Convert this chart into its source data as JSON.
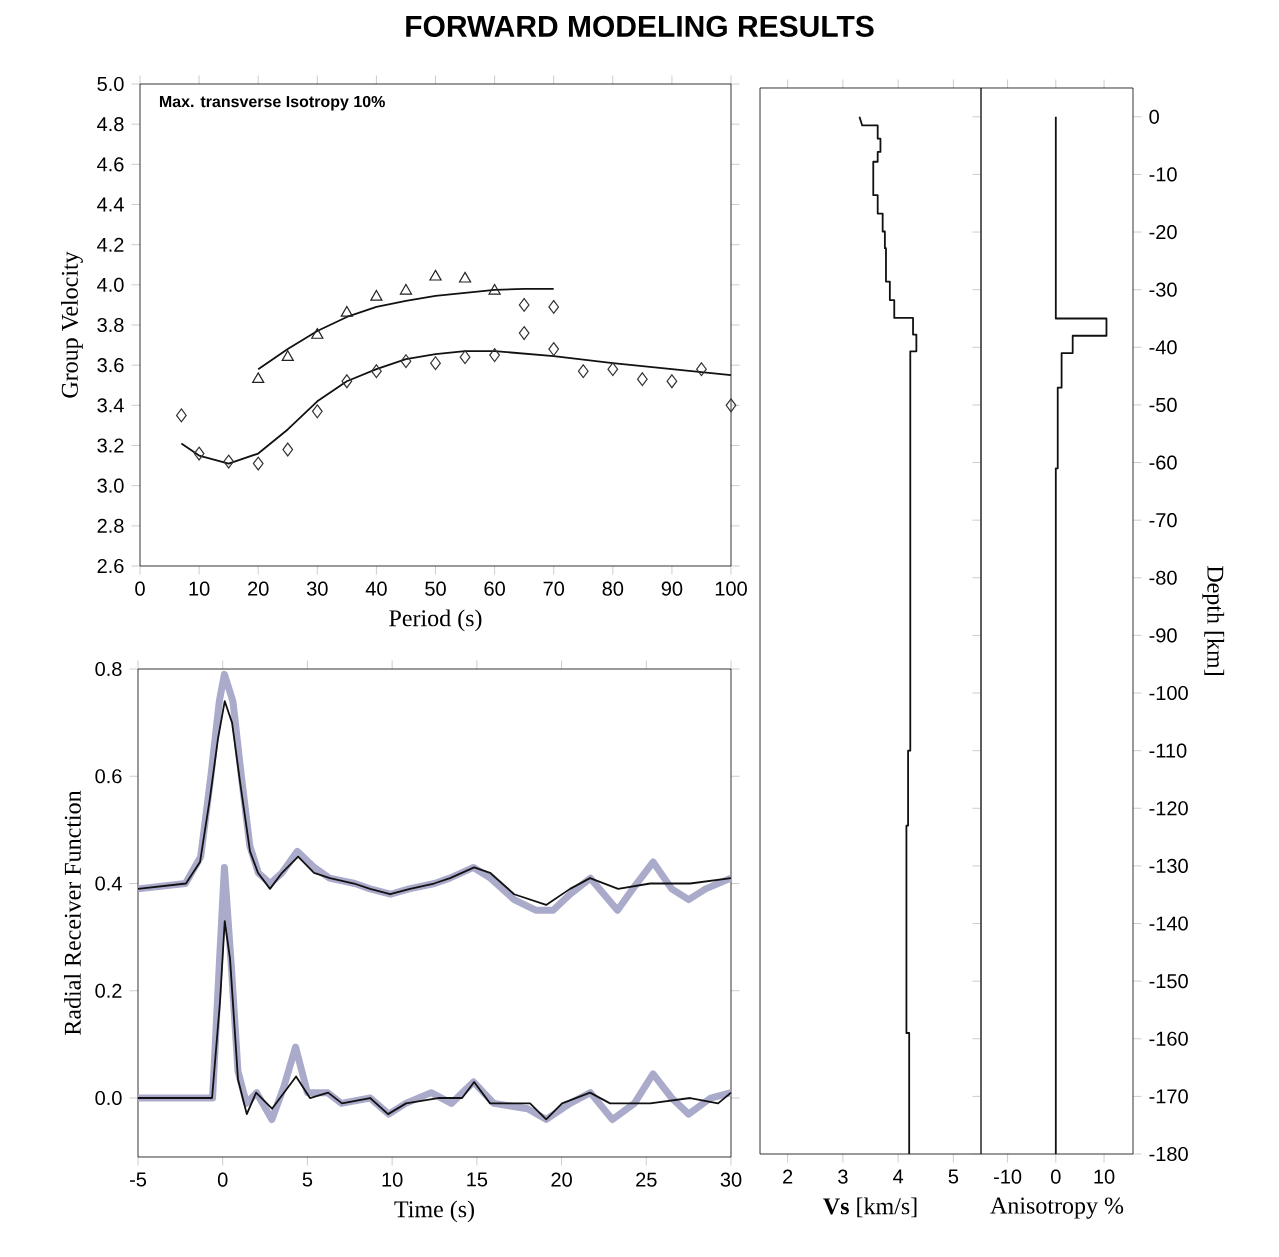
{
  "chart_data": [
    {
      "type": "scatter",
      "title": "FORWARD MODELING RESULTS",
      "xlabel": "Period (s)",
      "ylabel": "Group Velocity",
      "annotations": [
        "Max. transverse Isotropy 10%"
      ],
      "xlim": [
        0,
        100
      ],
      "ylim": [
        2.6,
        5.0
      ],
      "xticks": [
        0,
        10,
        20,
        30,
        40,
        50,
        60,
        70,
        80,
        90,
        100
      ],
      "yticks": [
        {
          "value": 2.6,
          "label": "2.6"
        },
        {
          "value": 2.8,
          "label": "2.8"
        },
        {
          "value": 3.0,
          "label": "3.0"
        },
        {
          "value": 3.2,
          "label": "3.2"
        },
        {
          "value": 3.4,
          "label": "3.4"
        },
        {
          "value": 3.6,
          "label": "3.6"
        },
        {
          "value": 3.8,
          "label": "3.8"
        },
        {
          "value": 4.0,
          "label": "4.0"
        },
        {
          "value": 4.2,
          "label": "4.2"
        },
        {
          "value": 4.4,
          "label": "4.4"
        },
        {
          "value": 4.6,
          "label": "4.6"
        },
        {
          "value": 4.8,
          "label": "4.8"
        },
        {
          "value": 5.0,
          "label": "5.0"
        }
      ],
      "series": [
        {
          "type": "scatter",
          "marker": "triangle",
          "color": "#222222",
          "x": [
            20,
            25,
            30,
            35,
            40,
            45,
            50,
            55,
            60
          ],
          "values": [
            3.53,
            3.64,
            3.75,
            3.86,
            3.94,
            3.97,
            4.04,
            4.03,
            3.97
          ]
        },
        {
          "type": "scatter",
          "marker": "diamond",
          "color": "#333333",
          "x": [
            7,
            10,
            15,
            20,
            25,
            30,
            35,
            40,
            45,
            50,
            55,
            60,
            65,
            65,
            70,
            70,
            75,
            80,
            85,
            90,
            95,
            100
          ],
          "values": [
            3.35,
            3.16,
            3.12,
            3.11,
            3.18,
            3.37,
            3.52,
            3.57,
            3.62,
            3.61,
            3.64,
            3.65,
            3.9,
            3.76,
            3.89,
            3.68,
            3.57,
            3.58,
            3.53,
            3.52,
            3.58,
            3.4
          ]
        },
        {
          "type": "line",
          "color": "#111111",
          "x": [
            20,
            25,
            30,
            35,
            40,
            45,
            50,
            55,
            60,
            65,
            70
          ],
          "values": [
            3.58,
            3.68,
            3.77,
            3.84,
            3.89,
            3.92,
            3.945,
            3.96,
            3.975,
            3.98,
            3.98
          ]
        },
        {
          "type": "line",
          "color": "#111111",
          "x": [
            7,
            10,
            15,
            20,
            25,
            30,
            35,
            40,
            45,
            50,
            55,
            60,
            70,
            80,
            90,
            100
          ],
          "values": [
            3.21,
            3.15,
            3.11,
            3.16,
            3.28,
            3.42,
            3.52,
            3.58,
            3.63,
            3.655,
            3.67,
            3.67,
            3.645,
            3.61,
            3.58,
            3.55
          ]
        }
      ]
    },
    {
      "type": "line",
      "xlabel": "Time (s)",
      "ylabel": "Radial Receiver Function",
      "xlim": [
        -5,
        30
      ],
      "ylim": [
        -0.11,
        0.8
      ],
      "xticks": [
        -5,
        0,
        5,
        10,
        15,
        20,
        25,
        30
      ],
      "yticks": [
        {
          "value": 0,
          "label": "0.0"
        },
        {
          "value": 0.2,
          "label": "0.2"
        },
        {
          "value": 0.4,
          "label": "0.4"
        },
        {
          "value": 0.6,
          "label": "0.6"
        },
        {
          "value": 0.8,
          "label": "0.8"
        }
      ],
      "series": [
        {
          "color": "#aaaacb",
          "x": [
            -5,
            -2.2,
            -1.3,
            -0.7,
            -0.2,
            0.1,
            0.6,
            1.1,
            1.6,
            2.1,
            2.8,
            3.5,
            4.4,
            5.4,
            6.3,
            7.8,
            8.7,
            9.9,
            11,
            12.5,
            13.4,
            14.8,
            15.8,
            17.2,
            18.5,
            19.5,
            20.5,
            21.7,
            23.3,
            24.2,
            25.4,
            26.5,
            27.5,
            28.5,
            30
          ],
          "values": [
            0.39,
            0.4,
            0.45,
            0.6,
            0.74,
            0.79,
            0.74,
            0.6,
            0.47,
            0.42,
            0.4,
            0.42,
            0.46,
            0.43,
            0.41,
            0.4,
            0.39,
            0.38,
            0.39,
            0.4,
            0.41,
            0.43,
            0.41,
            0.37,
            0.35,
            0.35,
            0.38,
            0.41,
            0.35,
            0.39,
            0.44,
            0.39,
            0.37,
            0.39,
            0.41
          ]
        },
        {
          "color": "#111111",
          "x": [
            -5,
            -2.17,
            -1.34,
            -0.75,
            -0.28,
            0.12,
            0.55,
            1.02,
            1.61,
            2.08,
            2.79,
            3.5,
            4.45,
            5.39,
            6.33,
            7.75,
            8.7,
            9.88,
            11.06,
            12.47,
            13.42,
            14.84,
            15.78,
            17.2,
            19.09,
            20.5,
            21.68,
            23.34,
            25.23,
            27.59,
            30
          ],
          "values": [
            0.39,
            0.4,
            0.44,
            0.56,
            0.67,
            0.74,
            0.7,
            0.59,
            0.46,
            0.42,
            0.39,
            0.42,
            0.45,
            0.42,
            0.41,
            0.4,
            0.39,
            0.38,
            0.39,
            0.4,
            0.41,
            0.43,
            0.42,
            0.38,
            0.36,
            0.39,
            0.41,
            0.39,
            0.4,
            0.4,
            0.41
          ]
        },
        {
          "color": "#aaaacb",
          "x": [
            -5,
            -0.6,
            -0.2,
            0.1,
            0.5,
            0.9,
            1.4,
            2,
            2.9,
            3.6,
            4.3,
            5,
            6.2,
            7,
            8.7,
            9.8,
            10.8,
            12.3,
            13.5,
            14.8,
            16,
            18,
            19.1,
            20.5,
            21.7,
            23,
            24.3,
            25.4,
            26.5,
            27.5,
            28.8,
            30
          ],
          "values": [
            0,
            0,
            0.25,
            0.43,
            0.25,
            0.05,
            -0.01,
            0.01,
            -0.04,
            0.02,
            0.095,
            0.01,
            0.01,
            -0.01,
            0,
            -0.03,
            -0.01,
            0.01,
            -0.01,
            0.03,
            -0.01,
            -0.02,
            -0.04,
            -0.01,
            0.01,
            -0.04,
            -0.01,
            0.045,
            0,
            -0.03,
            0,
            0.01
          ]
        },
        {
          "color": "#111111",
          "x": [
            -5,
            -0.63,
            -0.16,
            0.12,
            0.43,
            0.9,
            1.42,
            1.97,
            2.91,
            4.33,
            5.15,
            6.22,
            7.04,
            8.7,
            9.76,
            10.82,
            12.71,
            14.13,
            14.84,
            15.78,
            17.67,
            18.14,
            19.09,
            20.03,
            21.68,
            22.86,
            25.23,
            27.59,
            29.24,
            30
          ],
          "values": [
            0,
            0,
            0.18,
            0.33,
            0.26,
            0.035,
            -0.03,
            0.01,
            -0.02,
            0.04,
            0,
            0.01,
            -0.01,
            0,
            -0.03,
            -0.01,
            0,
            0,
            0.03,
            -0.01,
            -0.01,
            -0.01,
            -0.04,
            -0.01,
            0.01,
            -0.01,
            -0.01,
            0,
            -0.01,
            0.01
          ]
        }
      ]
    },
    {
      "type": "line",
      "xlabel": "**Vs** [km/s]",
      "xlim": [
        1.5,
        5.5
      ],
      "ylim": [
        -180,
        5
      ],
      "xticks": [
        2,
        3,
        4,
        5
      ],
      "tick_labels": "x",
      "series": [
        {
          "color": "#111111",
          "x": [
            3.3,
            3.35,
            3.35,
            3.63,
            3.63,
            3.68,
            3.68,
            3.63,
            3.63,
            3.55,
            3.55,
            3.63,
            3.63,
            3.72,
            3.72,
            3.76,
            3.76,
            3.78,
            3.78,
            3.85,
            3.85,
            3.93,
            3.93,
            4.27,
            4.27,
            4.33,
            4.33,
            4.22,
            4.22,
            4.18,
            4.18,
            4.15,
            4.15,
            4.2,
            4.2
          ],
          "values": [
            0,
            -1.5,
            -1.5,
            -1.5,
            -3.8,
            -3.8,
            -6.1,
            -6.1,
            -7.8,
            -7.8,
            -13.6,
            -13.6,
            -16.8,
            -16.8,
            -19.9,
            -19.9,
            -22.8,
            -22.8,
            -28.6,
            -28.6,
            -31.8,
            -31.8,
            -34.9,
            -34.9,
            -37.8,
            -37.8,
            -40.7,
            -40.7,
            -110,
            -110,
            -123,
            -123,
            -159,
            -159,
            -180
          ]
        }
      ]
    },
    {
      "type": "line",
      "xlabel": "Anisotropy %",
      "ylabel": "Depth [km]",
      "xlim": [
        -15.5,
        16
      ],
      "ylim": [
        -180,
        5
      ],
      "xticks": [
        -10,
        0,
        10
      ],
      "yticks": [
        0,
        -10,
        -20,
        -30,
        -40,
        -50,
        -60,
        -70,
        -80,
        -90,
        -100,
        -110,
        -120,
        -130,
        -140,
        -150,
        -160,
        -170,
        -180
      ],
      "series": [
        {
          "color": "#111111",
          "x": [
            0,
            0,
            10.5,
            10.5,
            3.5,
            3.5,
            1.2,
            1.2,
            0.4,
            0.4,
            0,
            0
          ],
          "values": [
            0,
            -35,
            -35,
            -38,
            -38,
            -41,
            -41,
            -47,
            -47,
            -61,
            -61,
            -180
          ]
        }
      ]
    }
  ]
}
